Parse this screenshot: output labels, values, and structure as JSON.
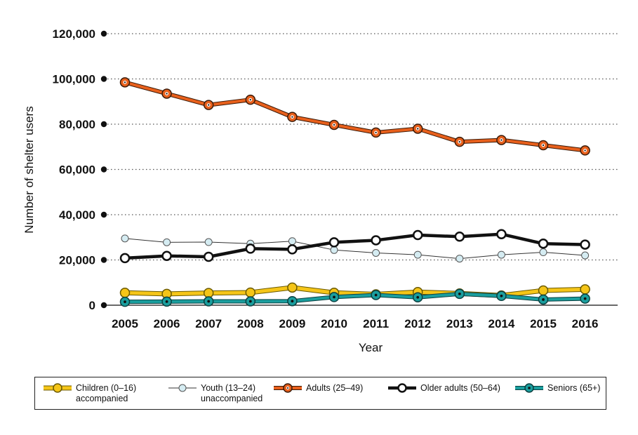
{
  "chart_data": {
    "type": "line",
    "title": "",
    "xlabel": "Year",
    "ylabel": "Number of shelter users",
    "ylim": [
      0,
      120000
    ],
    "yticks": [
      0,
      20000,
      40000,
      60000,
      80000,
      100000,
      120000
    ],
    "ytick_labels": [
      "0",
      "20,000",
      "40,000",
      "60,000",
      "80,000",
      "100,000",
      "120,000"
    ],
    "grid": "dotted horizontal",
    "categories": [
      "2005",
      "2006",
      "2007",
      "2008",
      "2009",
      "2010",
      "2011",
      "2012",
      "2013",
      "2014",
      "2015",
      "2016"
    ],
    "series": [
      {
        "name": "Children (0–16)",
        "name_line2": "accompanied",
        "color": "#f5c518",
        "values": [
          5500,
          5000,
          5400,
          5600,
          7800,
          5500,
          4800,
          5800,
          5200,
          4300,
          6500,
          7000
        ]
      },
      {
        "name": "Youth (13–24)",
        "name_line2": "unaccompanied",
        "color": "#d5ecf2",
        "values": [
          29500,
          27800,
          27900,
          27200,
          28300,
          24400,
          23100,
          22300,
          20600,
          22300,
          23400,
          22000
        ]
      },
      {
        "name": "Adults (25–49)",
        "name_line2": "",
        "color": "#e8601c",
        "values": [
          98500,
          93500,
          88500,
          90800,
          83200,
          79700,
          76300,
          78000,
          72200,
          73000,
          70700,
          68400
        ]
      },
      {
        "name": "Older adults (50–64)",
        "name_line2": "",
        "color": "#111111",
        "values": [
          20800,
          21800,
          21400,
          25000,
          24700,
          27800,
          28700,
          31000,
          30300,
          31400,
          27200,
          26800
        ]
      },
      {
        "name": "Seniors (65+)",
        "name_line2": "",
        "color": "#1a9e9e",
        "values": [
          1500,
          1600,
          1700,
          1700,
          1800,
          3600,
          4500,
          3500,
          5000,
          4100,
          2500,
          2900
        ]
      }
    ]
  }
}
